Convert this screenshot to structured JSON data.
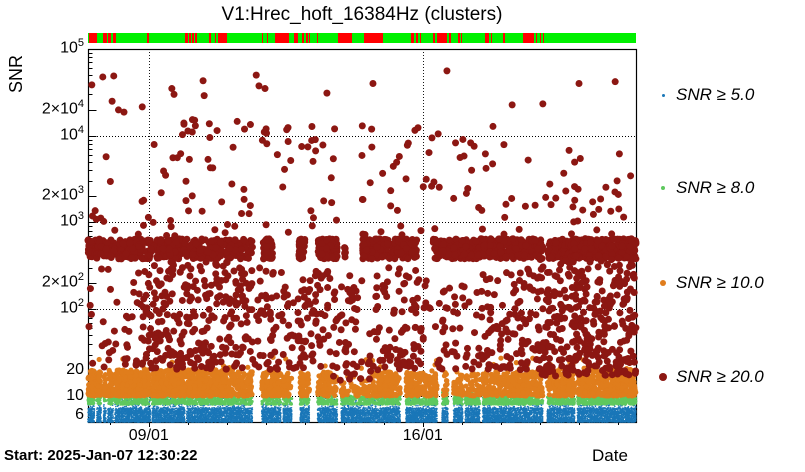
{
  "chart_data": {
    "type": "scatter",
    "title": "V1:Hrec_hoft_16384Hz (clusters)",
    "xlabel": "Date",
    "ylabel": "SNR",
    "x_axis": {
      "start": "Start: 2025-Jan-07 12:30:22",
      "ticks": [
        {
          "label": "09/01",
          "f": 0.111
        },
        {
          "label": "16/01",
          "f": 0.611
        }
      ],
      "day_step_f": 0.0714,
      "first_day_f": 0.0396
    },
    "y_axis": {
      "scale": "log",
      "range": [
        5,
        100000
      ],
      "grid_values": [
        10,
        100,
        1000,
        10000
      ],
      "ticks": [
        {
          "value": 100000,
          "text": "10",
          "sup": "5"
        },
        {
          "value": 20000,
          "text": "2×10",
          "sup": "4"
        },
        {
          "value": 10000,
          "text": "10",
          "sup": "4"
        },
        {
          "value": 2000,
          "text": "2×10",
          "sup": "3"
        },
        {
          "value": 1000,
          "text": "10",
          "sup": "3"
        },
        {
          "value": 200,
          "text": "2×10",
          "sup": "2"
        },
        {
          "value": 100,
          "text": "10",
          "sup": "2"
        },
        {
          "value": 20,
          "text": "20"
        },
        {
          "value": 10,
          "text": "10"
        },
        {
          "value": 6,
          "text": "6"
        }
      ]
    },
    "series": [
      {
        "label": "SNR ≥ 5.0",
        "color": "#1a77b8",
        "radius": 0.8
      },
      {
        "label": "SNR ≥ 8.0",
        "color": "#5ec85e",
        "radius": 1.5
      },
      {
        "label": "SNR ≥ 10.0",
        "color": "#e07d1c",
        "radius": 2.6
      },
      {
        "label": "SNR ≥ 20.0",
        "color": "#8c1712",
        "radius": 3.5
      }
    ],
    "status_bar": {
      "on_color": "#00f000",
      "off_color": "#ff0000",
      "red_segments": [
        [
          0.001,
          0.016
        ],
        [
          0.028,
          0.034
        ],
        [
          0.037,
          0.042
        ],
        [
          0.045,
          0.052
        ],
        [
          0.108,
          0.112
        ],
        [
          0.177,
          0.182
        ],
        [
          0.184,
          0.188
        ],
        [
          0.19,
          0.193
        ],
        [
          0.195,
          0.198
        ],
        [
          0.22,
          0.224
        ],
        [
          0.231,
          0.234
        ],
        [
          0.238,
          0.253
        ],
        [
          0.317,
          0.32
        ],
        [
          0.326,
          0.329
        ],
        [
          0.341,
          0.366
        ],
        [
          0.375,
          0.384
        ],
        [
          0.39,
          0.395
        ],
        [
          0.397,
          0.401
        ],
        [
          0.403,
          0.406
        ],
        [
          0.417,
          0.42
        ],
        [
          0.457,
          0.481
        ],
        [
          0.504,
          0.538
        ],
        [
          0.589,
          0.595
        ],
        [
          0.599,
          0.602
        ],
        [
          0.606,
          0.608
        ],
        [
          0.629,
          0.634
        ],
        [
          0.636,
          0.656
        ],
        [
          0.659,
          0.662
        ],
        [
          0.676,
          0.679
        ],
        [
          0.68,
          0.683
        ],
        [
          0.724,
          0.728
        ],
        [
          0.729,
          0.732
        ],
        [
          0.735,
          0.738
        ],
        [
          0.758,
          0.761
        ],
        [
          0.793,
          0.813
        ],
        [
          0.817,
          0.82
        ],
        [
          0.825,
          0.827
        ],
        [
          0.83,
          0.832
        ]
      ]
    },
    "downtime_gaps": [
      [
        0.012,
        0.016
      ],
      [
        0.024,
        0.028
      ],
      [
        0.033,
        0.036
      ],
      [
        0.046,
        0.049
      ],
      [
        0.114,
        0.117
      ],
      [
        0.177,
        0.18
      ],
      [
        0.3,
        0.317
      ],
      [
        0.352,
        0.356
      ],
      [
        0.372,
        0.387
      ],
      [
        0.404,
        0.419
      ],
      [
        0.455,
        0.462
      ],
      [
        0.57,
        0.58
      ],
      [
        0.637,
        0.646
      ],
      [
        0.657,
        0.667
      ],
      [
        0.684,
        0.688
      ],
      [
        0.715,
        0.72
      ],
      [
        0.83,
        0.838
      ],
      [
        0.888,
        0.893
      ]
    ],
    "band_gaps_snr20": [
      [
        0.303,
        0.32
      ],
      [
        0.337,
        0.385
      ],
      [
        0.396,
        0.42
      ],
      [
        0.455,
        0.468
      ],
      [
        0.474,
        0.493
      ],
      [
        0.606,
        0.63
      ],
      [
        0.83,
        0.84
      ]
    ],
    "clusters": {
      "snr5": [
        [
          0.0,
          1.0,
          5,
          7.3,
          12000,
          1.6
        ],
        [
          0.0,
          1.0,
          6.3,
          9.6,
          2800,
          2.2
        ]
      ],
      "snr8": [
        [
          0.0,
          1.0,
          8,
          10,
          1900,
          1.25
        ],
        [
          0.62,
          0.82,
          8,
          11,
          260,
          1.5
        ],
        [
          0.85,
          1.0,
          8,
          11.5,
          260,
          1.5
        ]
      ],
      "snr10": [
        [
          0.0,
          0.27,
          10,
          20,
          1150,
          1.35
        ],
        [
          0.27,
          0.44,
          10,
          19,
          430,
          1.35
        ],
        [
          0.44,
          0.52,
          10,
          17,
          80,
          1.3
        ],
        [
          0.52,
          0.62,
          10,
          19,
          250,
          1.35
        ],
        [
          0.62,
          0.72,
          10,
          18,
          140,
          1.3
        ],
        [
          0.72,
          0.85,
          10,
          19,
          300,
          1.3
        ],
        [
          0.85,
          1.0,
          10,
          21,
          500,
          1.35
        ],
        [
          0.0,
          1.0,
          18,
          28,
          60,
          1.6
        ]
      ],
      "snr20_band": [
        [
          0.0,
          0.3,
          380,
          650,
          430,
          1
        ],
        [
          0.32,
          0.47,
          380,
          650,
          260,
          1
        ],
        [
          0.5,
          0.6,
          380,
          650,
          190,
          1
        ],
        [
          0.63,
          0.83,
          380,
          650,
          340,
          1
        ],
        [
          0.84,
          1.0,
          380,
          650,
          430,
          1
        ]
      ],
      "snr20_mid": [
        [
          0.0,
          0.1,
          20,
          300,
          42,
          1.2
        ],
        [
          0.1,
          0.28,
          20,
          350,
          240,
          1.2
        ],
        [
          0.28,
          0.35,
          20,
          300,
          70,
          1.2
        ],
        [
          0.35,
          0.44,
          20,
          300,
          85,
          1.2
        ],
        [
          0.44,
          0.52,
          15,
          300,
          60,
          1.2
        ],
        [
          0.52,
          0.63,
          20,
          300,
          95,
          1.2
        ],
        [
          0.63,
          0.72,
          20,
          200,
          50,
          1.2
        ],
        [
          0.72,
          0.82,
          20,
          300,
          95,
          1.2
        ],
        [
          0.82,
          1.0,
          17,
          420,
          340,
          1.1
        ]
      ],
      "snr20_high": [
        [
          0.0,
          0.1,
          700,
          20000,
          12,
          1.3
        ],
        [
          0.1,
          0.28,
          700,
          20000,
          42,
          1.3
        ],
        [
          0.28,
          0.44,
          700,
          15000,
          30,
          1.3
        ],
        [
          0.44,
          0.62,
          700,
          15000,
          30,
          1.3
        ],
        [
          0.62,
          0.82,
          700,
          15000,
          28,
          1.3
        ],
        [
          0.82,
          1.0,
          700,
          9000,
          32,
          1.3
        ]
      ]
    },
    "top_points": [
      [
        0.007,
        38600
      ],
      [
        0.027,
        47600
      ],
      [
        0.044,
        25000
      ],
      [
        0.047,
        48900
      ],
      [
        0.099,
        21500
      ],
      [
        0.153,
        35000
      ],
      [
        0.157,
        30000
      ],
      [
        0.175,
        14000
      ],
      [
        0.21,
        43000
      ],
      [
        0.212,
        29000
      ],
      [
        0.307,
        50000
      ],
      [
        0.312,
        37600
      ],
      [
        0.323,
        35000
      ],
      [
        0.325,
        12000
      ],
      [
        0.365,
        12400
      ],
      [
        0.39,
        7500
      ],
      [
        0.436,
        31000
      ],
      [
        0.45,
        12000
      ],
      [
        0.518,
        7400
      ],
      [
        0.52,
        40000
      ],
      [
        0.639,
        10500
      ],
      [
        0.655,
        56000
      ],
      [
        0.679,
        5600
      ],
      [
        0.7,
        4000
      ],
      [
        0.739,
        12800
      ],
      [
        0.759,
        7900
      ],
      [
        0.774,
        22700
      ],
      [
        0.83,
        23300
      ],
      [
        0.896,
        40000
      ],
      [
        0.962,
        42000
      ]
    ],
    "seed": 20250107
  }
}
